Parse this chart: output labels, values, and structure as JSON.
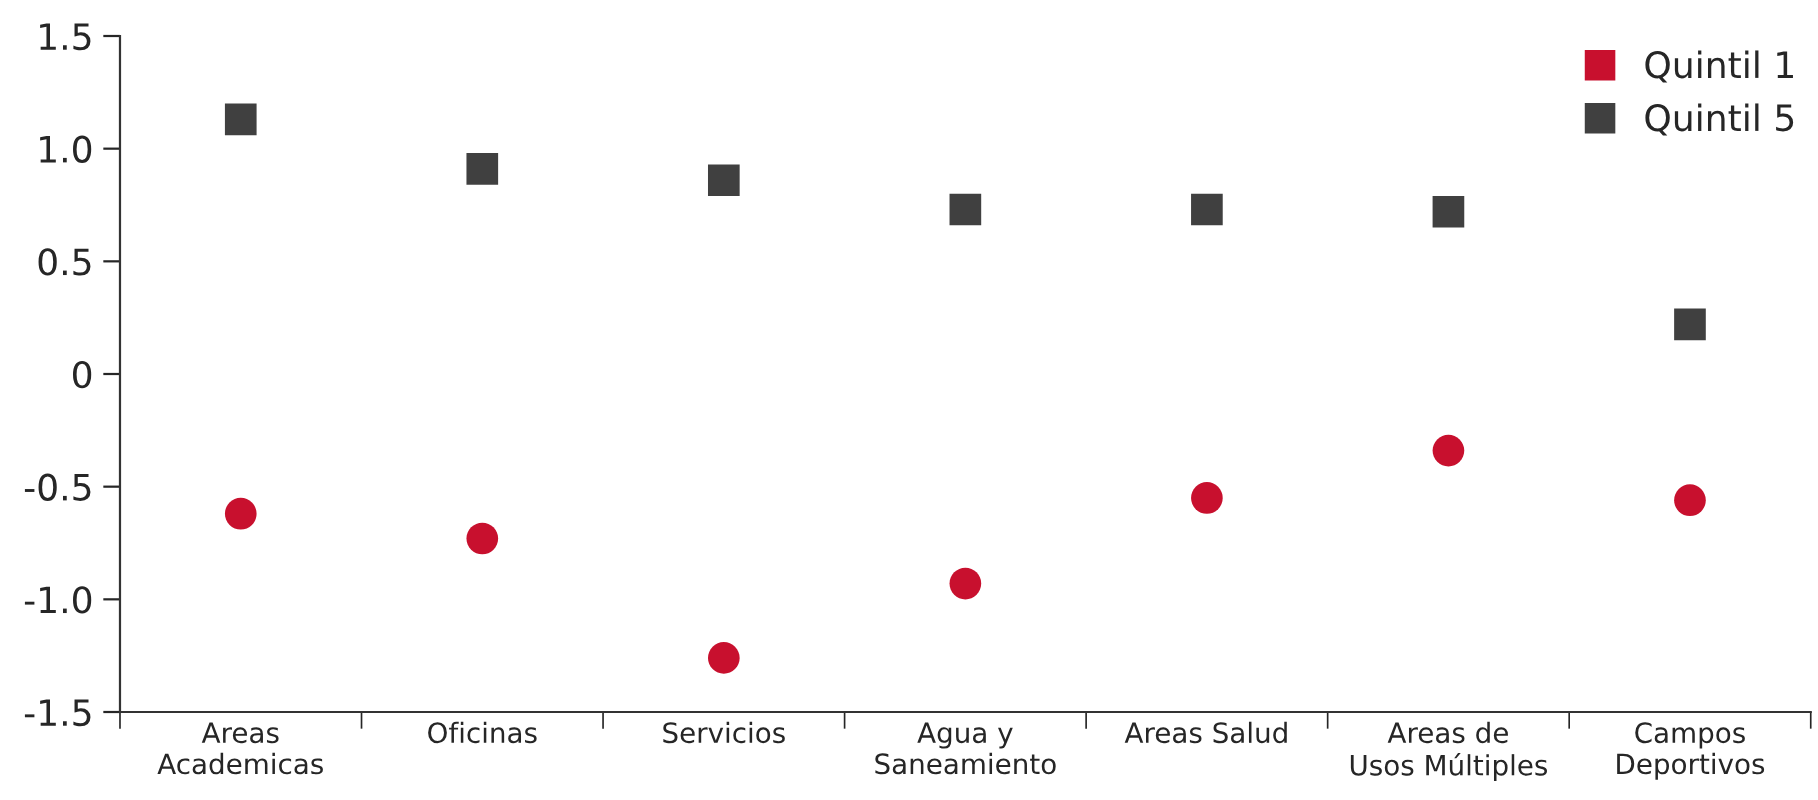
{
  "chart_data": {
    "type": "scatter",
    "categories": [
      "Areas\nAcademicas",
      "Oficinas",
      "Servicios",
      "Agua y\nSaneamiento",
      "Areas Salud",
      "Areas de\nUsos Múltiples",
      "Campos\nDeportivos"
    ],
    "series": [
      {
        "name": "Quintil 1",
        "color": "#c8102e",
        "marker": "circle",
        "values": [
          -0.62,
          -0.73,
          -1.26,
          -0.93,
          -0.55,
          -0.34,
          -0.56
        ]
      },
      {
        "name": "Quintil 5",
        "color": "#404040",
        "marker": "square",
        "values": [
          1.13,
          0.91,
          0.86,
          0.73,
          0.73,
          0.72,
          0.22
        ]
      }
    ],
    "ylim": [
      -1.5,
      1.5
    ],
    "yticks": [
      {
        "value": -1.5,
        "label": "-1.5"
      },
      {
        "value": -1.0,
        "label": "-1.0"
      },
      {
        "value": -0.5,
        "label": "-0.5"
      },
      0,
      {
        "value": 0.5,
        "label": "0.5"
      },
      {
        "value": 1.0,
        "label": "1.0"
      },
      {
        "value": 1.5,
        "label": "1.5"
      }
    ],
    "legend": "top right",
    "grid": false
  }
}
